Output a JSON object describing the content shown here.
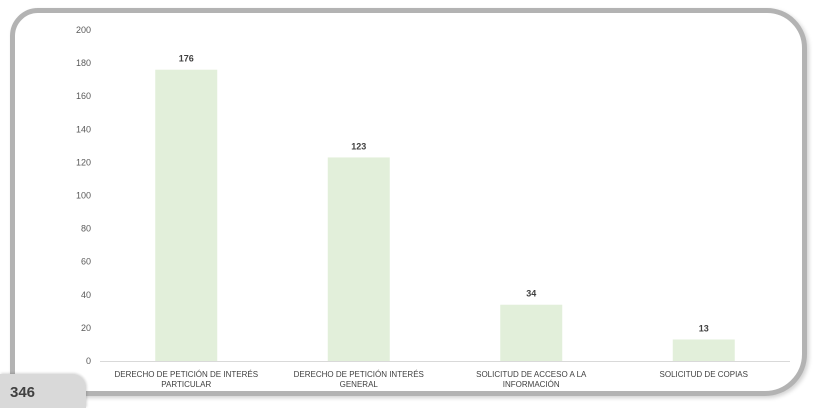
{
  "chart_data": {
    "type": "bar",
    "categories": [
      [
        "DERECHO DE PETICIÓN DE INTERÉS",
        "PARTICULAR"
      ],
      [
        "DERECHO DE PETICIÓN INTERÉS",
        "GENERAL"
      ],
      [
        "SOLICITUD DE ACCESO A LA",
        "INFORMACIÓN"
      ],
      [
        "SOLICITUD DE COPIAS"
      ]
    ],
    "values": [
      176,
      123,
      34,
      13
    ],
    "ylim": [
      0,
      200
    ],
    "yticks": [
      0,
      20,
      40,
      60,
      80,
      100,
      120,
      140,
      160,
      180,
      200
    ],
    "bar_color": "#e2efda",
    "grid": false,
    "legend": "none",
    "xlabel": "",
    "ylabel": ""
  },
  "total": "346"
}
